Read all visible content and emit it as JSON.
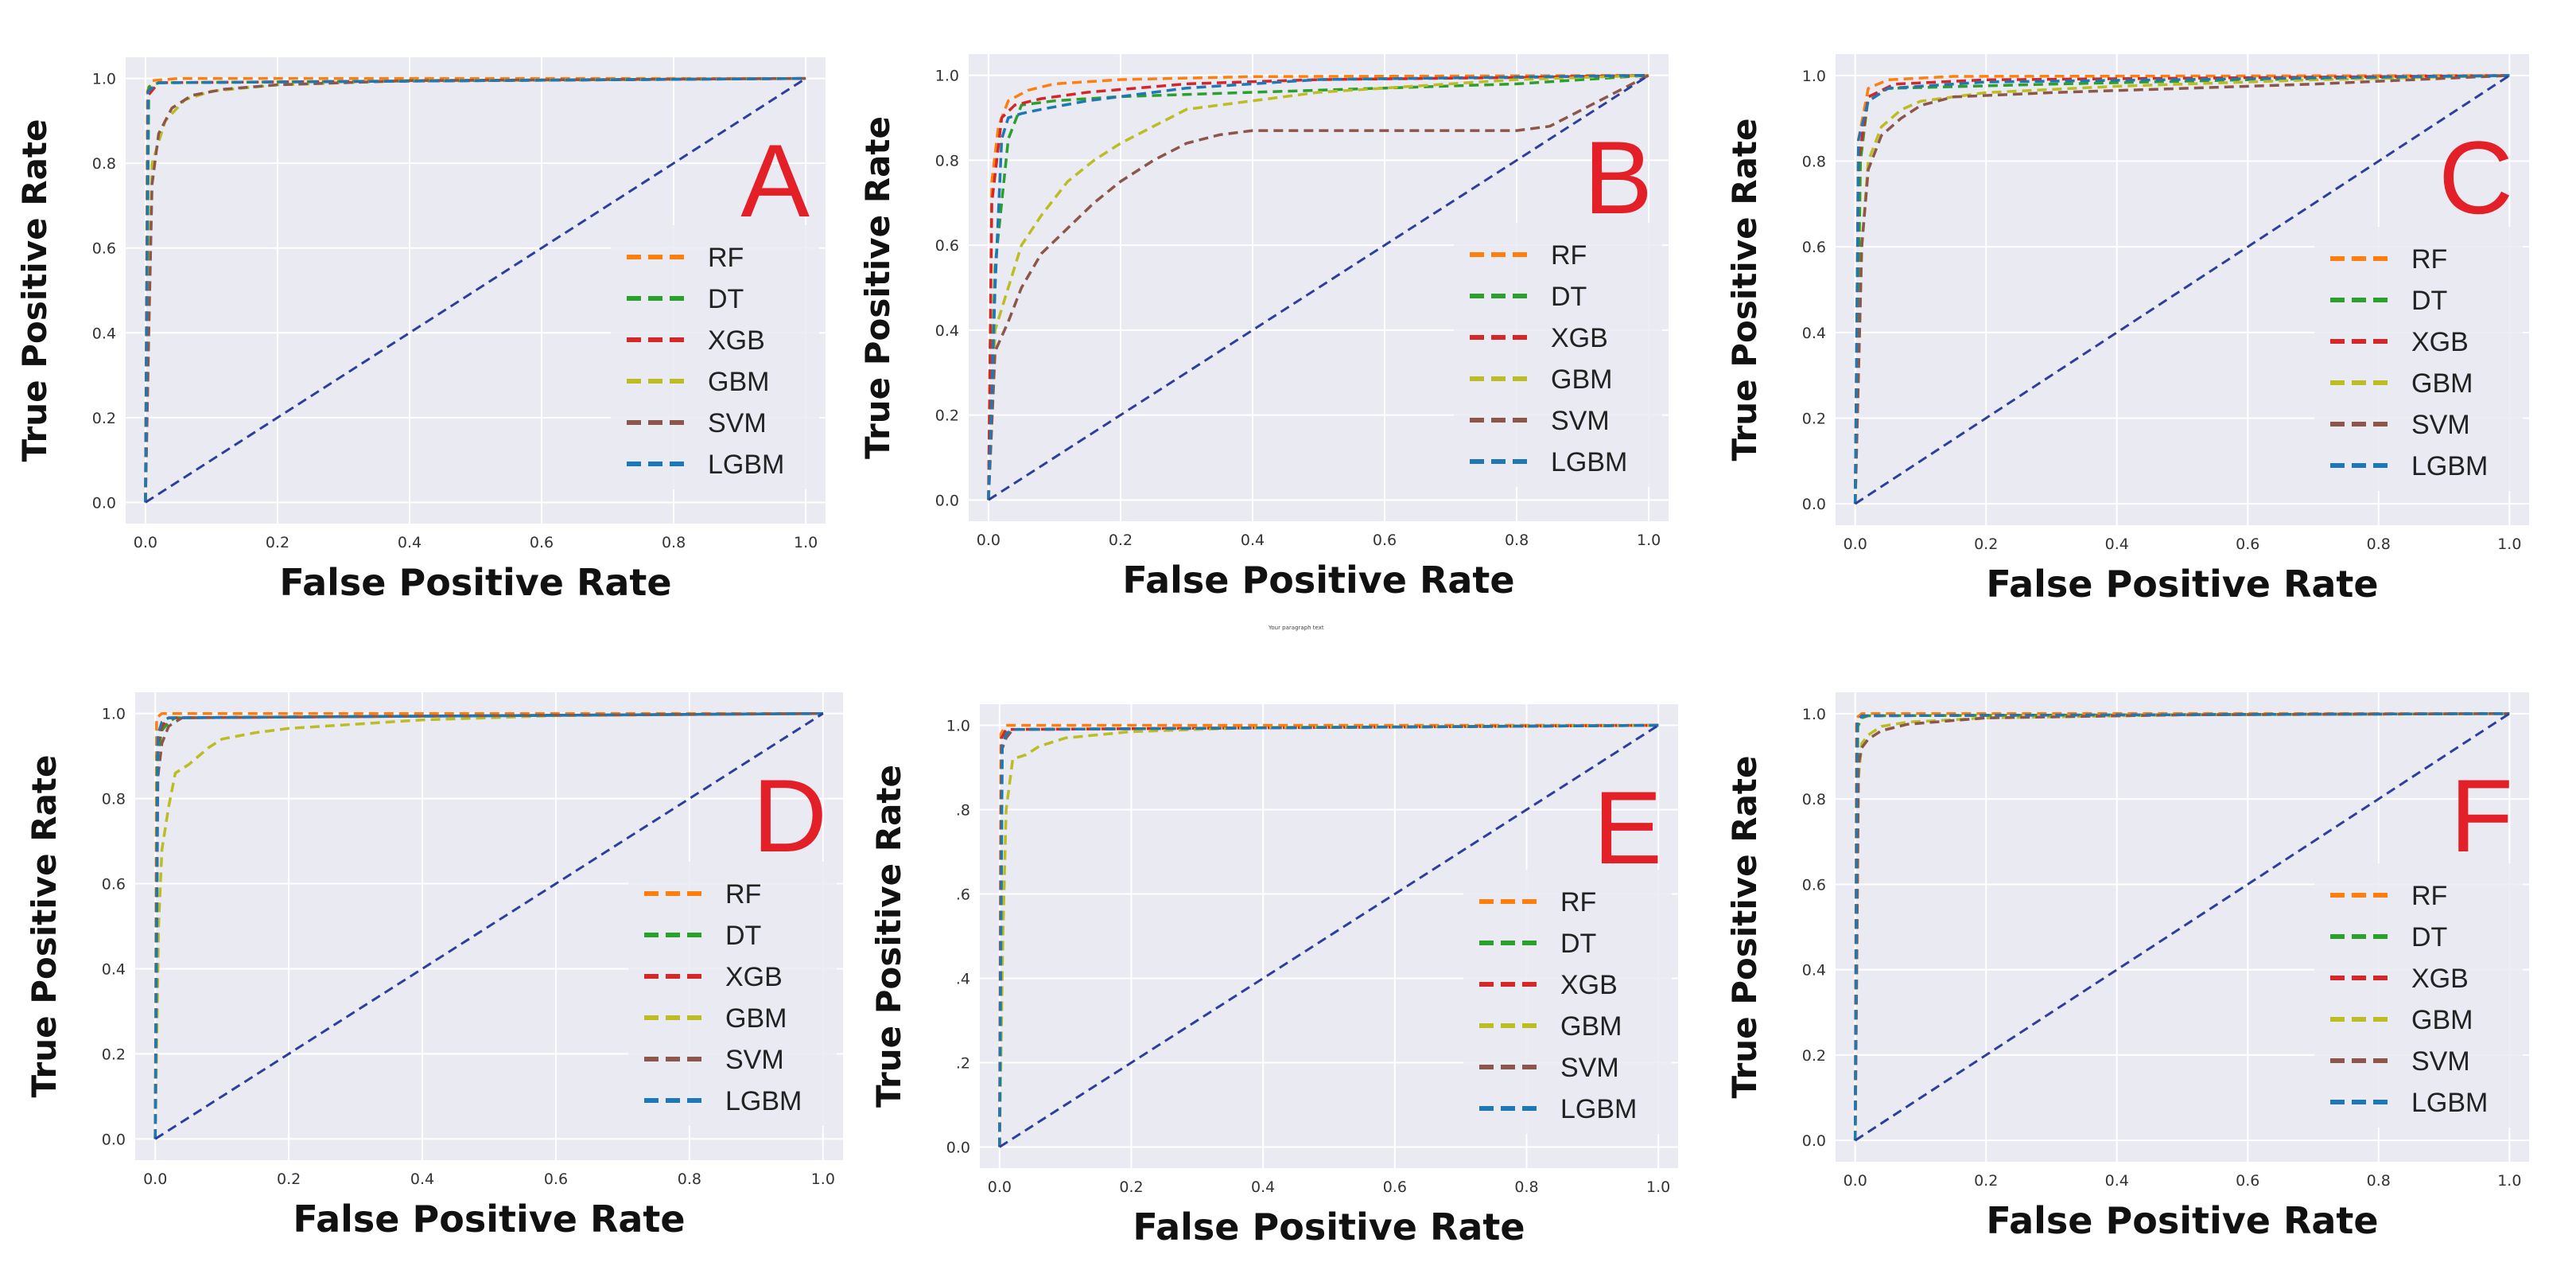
{
  "figure": {
    "footnote": "Your paragraph text"
  },
  "legend_colors": {
    "RF": "#ff7f0e",
    "DT": "#2ca02c",
    "XGB": "#d62728",
    "GBM": "#bcbd22",
    "SVM": "#8c564b",
    "LGBM": "#1f77b4",
    "diagonal": "#2b3f9e",
    "panel_label": "#e32028",
    "plot_background": "#eaeaf2"
  },
  "chart_data": [
    {
      "type": "line",
      "panel_label": "A",
      "xlabel": "False Positive Rate",
      "ylabel": "True Positive Rate",
      "xlim": [
        0,
        1
      ],
      "ylim": [
        0,
        1
      ],
      "xticks": [
        "0.0",
        "0.2",
        "0.4",
        "0.6",
        "0.8",
        "1.0"
      ],
      "yticks": [
        "0.0",
        "0.2",
        "0.4",
        "0.6",
        "0.8",
        "1.0"
      ],
      "grid": true,
      "legend_position": "lower-right",
      "series": [
        {
          "name": "RF",
          "x": [
            0,
            0.003,
            0.01,
            0.05,
            1
          ],
          "y": [
            0,
            0.97,
            0.995,
            1.0,
            1.0
          ]
        },
        {
          "name": "DT",
          "x": [
            0,
            0.005,
            0.02,
            1
          ],
          "y": [
            0,
            0.98,
            0.99,
            1.0
          ]
        },
        {
          "name": "XGB",
          "x": [
            0,
            0.004,
            0.02,
            1
          ],
          "y": [
            0,
            0.96,
            0.99,
            1.0
          ]
        },
        {
          "name": "GBM",
          "x": [
            0,
            0.005,
            0.01,
            0.03,
            0.06,
            0.1,
            0.2,
            0.4,
            1
          ],
          "y": [
            0,
            0.45,
            0.8,
            0.9,
            0.95,
            0.97,
            0.985,
            0.995,
            1.0
          ]
        },
        {
          "name": "SVM",
          "x": [
            0,
            0.005,
            0.01,
            0.02,
            0.04,
            0.07,
            0.12,
            0.2,
            0.4,
            1
          ],
          "y": [
            0,
            0.4,
            0.75,
            0.87,
            0.93,
            0.96,
            0.975,
            0.985,
            0.995,
            1.0
          ]
        },
        {
          "name": "LGBM",
          "x": [
            0,
            0.004,
            0.02,
            1
          ],
          "y": [
            0,
            0.97,
            0.99,
            1.0
          ]
        },
        {
          "name": "",
          "x": [
            0,
            1
          ],
          "y": [
            0,
            1
          ]
        }
      ]
    },
    {
      "type": "line",
      "panel_label": "B",
      "xlabel": "False Positive Rate",
      "ylabel": "True Positive Rate",
      "xlim": [
        0,
        1
      ],
      "ylim": [
        0,
        1
      ],
      "xticks": [
        "0.0",
        "0.2",
        "0.4",
        "0.6",
        "0.8",
        "1.0"
      ],
      "yticks": [
        "0.0",
        "0.2",
        "0.4",
        "0.6",
        "0.8",
        "1.0"
      ],
      "grid": true,
      "legend_position": "lower-right",
      "series": [
        {
          "name": "RF",
          "x": [
            0,
            0.005,
            0.015,
            0.03,
            0.06,
            0.1,
            0.2,
            0.4,
            1
          ],
          "y": [
            0,
            0.75,
            0.88,
            0.94,
            0.965,
            0.98,
            0.99,
            0.997,
            1.0
          ]
        },
        {
          "name": "DT",
          "x": [
            0,
            0.01,
            0.03,
            0.05,
            0.1,
            0.2,
            0.4,
            0.6,
            0.8,
            1
          ],
          "y": [
            0,
            0.55,
            0.85,
            0.93,
            0.94,
            0.95,
            0.96,
            0.97,
            0.98,
            1.0
          ]
        },
        {
          "name": "XGB",
          "x": [
            0,
            0.005,
            0.02,
            0.04,
            0.08,
            0.15,
            0.3,
            0.5,
            0.8,
            1
          ],
          "y": [
            0,
            0.7,
            0.9,
            0.93,
            0.945,
            0.96,
            0.98,
            0.99,
            0.995,
            1.0
          ]
        },
        {
          "name": "GBM",
          "x": [
            0,
            0.01,
            0.03,
            0.05,
            0.08,
            0.12,
            0.16,
            0.2,
            0.25,
            0.3,
            0.4,
            0.5,
            0.6,
            0.8,
            1
          ],
          "y": [
            0,
            0.4,
            0.5,
            0.6,
            0.67,
            0.75,
            0.8,
            0.84,
            0.88,
            0.92,
            0.94,
            0.96,
            0.97,
            0.99,
            1.0
          ]
        },
        {
          "name": "SVM",
          "x": [
            0,
            0.01,
            0.03,
            0.05,
            0.08,
            0.12,
            0.16,
            0.2,
            0.25,
            0.3,
            0.35,
            0.4,
            0.6,
            0.8,
            0.85,
            0.9,
            0.95,
            1
          ],
          "y": [
            0,
            0.35,
            0.42,
            0.5,
            0.58,
            0.64,
            0.7,
            0.75,
            0.8,
            0.84,
            0.86,
            0.87,
            0.87,
            0.87,
            0.88,
            0.92,
            0.96,
            1.0
          ]
        },
        {
          "name": "LGBM",
          "x": [
            0,
            0.01,
            0.02,
            0.03,
            0.05,
            0.08,
            0.15,
            0.3,
            0.5,
            1
          ],
          "y": [
            0,
            0.5,
            0.85,
            0.9,
            0.91,
            0.92,
            0.94,
            0.97,
            0.99,
            1.0
          ]
        },
        {
          "name": "",
          "x": [
            0,
            1
          ],
          "y": [
            0,
            1
          ]
        }
      ]
    },
    {
      "type": "line",
      "panel_label": "C",
      "xlabel": "False Positive Rate",
      "ylabel": "True Positive Rate",
      "xlim": [
        0,
        1
      ],
      "ylim": [
        0,
        1
      ],
      "xticks": [
        "0.0",
        "0.2",
        "0.4",
        "0.6",
        "0.8",
        "1.0"
      ],
      "yticks": [
        "0.0",
        "0.2",
        "0.4",
        "0.6",
        "0.8",
        "1.0"
      ],
      "grid": true,
      "legend_position": "lower-right",
      "series": [
        {
          "name": "RF",
          "x": [
            0,
            0.005,
            0.02,
            0.05,
            0.15,
            1
          ],
          "y": [
            0,
            0.85,
            0.97,
            0.99,
            0.998,
            1.0
          ]
        },
        {
          "name": "DT",
          "x": [
            0,
            0.008,
            0.02,
            0.05,
            0.3,
            0.6,
            1
          ],
          "y": [
            0,
            0.8,
            0.95,
            0.97,
            0.98,
            0.99,
            1.0
          ]
        },
        {
          "name": "XGB",
          "x": [
            0,
            0.005,
            0.02,
            0.06,
            0.2,
            1
          ],
          "y": [
            0,
            0.8,
            0.95,
            0.98,
            0.99,
            1.0
          ]
        },
        {
          "name": "GBM",
          "x": [
            0,
            0.01,
            0.02,
            0.04,
            0.07,
            0.1,
            0.2,
            0.4,
            0.7,
            1
          ],
          "y": [
            0,
            0.6,
            0.8,
            0.88,
            0.92,
            0.94,
            0.96,
            0.975,
            0.99,
            1.0
          ]
        },
        {
          "name": "SVM",
          "x": [
            0,
            0.01,
            0.02,
            0.04,
            0.07,
            0.1,
            0.15,
            0.3,
            0.5,
            0.7,
            1
          ],
          "y": [
            0,
            0.6,
            0.78,
            0.86,
            0.9,
            0.93,
            0.95,
            0.96,
            0.97,
            0.98,
            1.0
          ]
        },
        {
          "name": "LGBM",
          "x": [
            0,
            0.005,
            0.02,
            0.05,
            0.2,
            1
          ],
          "y": [
            0,
            0.85,
            0.94,
            0.97,
            0.985,
            1.0
          ]
        },
        {
          "name": "",
          "x": [
            0,
            1
          ],
          "y": [
            0,
            1
          ]
        }
      ]
    },
    {
      "type": "line",
      "panel_label": "D",
      "xlabel": "False Positive Rate",
      "ylabel": "True Positive Rate",
      "xlim": [
        0,
        1
      ],
      "ylim": [
        0,
        1
      ],
      "xticks": [
        "0.0",
        "0.2",
        "0.4",
        "0.6",
        "0.8",
        "1.0"
      ],
      "yticks": [
        "0.0",
        "0.2",
        "0.4",
        "0.6",
        "0.8",
        "1.0"
      ],
      "grid": true,
      "legend_position": "lower-right",
      "series": [
        {
          "name": "RF",
          "x": [
            0,
            0.002,
            0.01,
            1
          ],
          "y": [
            0,
            0.99,
            1.0,
            1.0
          ]
        },
        {
          "name": "DT",
          "x": [
            0,
            0.003,
            0.01,
            0.02,
            0.03,
            1
          ],
          "y": [
            0,
            0.9,
            0.96,
            0.98,
            0.99,
            1.0
          ]
        },
        {
          "name": "XGB",
          "x": [
            0,
            0.004,
            0.01,
            0.02,
            1
          ],
          "y": [
            0,
            0.93,
            0.97,
            0.99,
            1.0
          ]
        },
        {
          "name": "GBM",
          "x": [
            0,
            0.005,
            0.01,
            0.02,
            0.03,
            0.05,
            0.08,
            0.1,
            0.15,
            0.2,
            0.3,
            0.4,
            0.6,
            1
          ],
          "y": [
            0,
            0.5,
            0.68,
            0.78,
            0.86,
            0.88,
            0.92,
            0.94,
            0.955,
            0.965,
            0.975,
            0.985,
            0.995,
            1.0
          ]
        },
        {
          "name": "SVM",
          "x": [
            0,
            0.004,
            0.01,
            0.02,
            0.04,
            1
          ],
          "y": [
            0,
            0.85,
            0.93,
            0.97,
            0.99,
            1.0
          ]
        },
        {
          "name": "LGBM",
          "x": [
            0,
            0.004,
            0.01,
            0.02,
            1
          ],
          "y": [
            0,
            0.95,
            0.98,
            0.99,
            1.0
          ]
        },
        {
          "name": "",
          "x": [
            0,
            1
          ],
          "y": [
            0,
            1
          ]
        }
      ]
    },
    {
      "type": "line",
      "panel_label": "E",
      "xlabel": "False Positive Rate",
      "ylabel": "True Positive Rate",
      "xlim": [
        0,
        1
      ],
      "ylim": [
        0,
        1
      ],
      "xticks": [
        "0.0",
        "0.2",
        "0.4",
        "0.6",
        "0.8",
        "1.0"
      ],
      "yticks": [
        "0.0",
        ".2",
        ".4",
        ".6",
        ".8",
        "1.0"
      ],
      "grid": true,
      "legend_position": "lower-right",
      "series": [
        {
          "name": "RF",
          "x": [
            0,
            0.002,
            0.01,
            1
          ],
          "y": [
            0,
            0.98,
            1.0,
            1.0
          ]
        },
        {
          "name": "DT",
          "x": [
            0,
            0.004,
            0.01,
            0.02,
            1
          ],
          "y": [
            0,
            0.95,
            0.98,
            0.99,
            1.0
          ]
        },
        {
          "name": "XGB",
          "x": [
            0,
            0.003,
            0.01,
            1
          ],
          "y": [
            0,
            0.97,
            0.99,
            1.0
          ]
        },
        {
          "name": "GBM",
          "x": [
            0,
            0.005,
            0.01,
            0.02,
            0.04,
            0.06,
            0.1,
            0.2,
            0.4,
            1
          ],
          "y": [
            0,
            0.5,
            0.8,
            0.92,
            0.93,
            0.95,
            0.97,
            0.985,
            0.995,
            1.0
          ]
        },
        {
          "name": "SVM",
          "x": [
            0,
            0.003,
            0.01,
            0.02,
            1
          ],
          "y": [
            0,
            0.94,
            0.97,
            0.99,
            1.0
          ]
        },
        {
          "name": "LGBM",
          "x": [
            0,
            0.004,
            0.01,
            0.02,
            1
          ],
          "y": [
            0,
            0.95,
            0.98,
            0.99,
            1.0
          ]
        },
        {
          "name": "",
          "x": [
            0,
            1
          ],
          "y": [
            0,
            1
          ]
        }
      ]
    },
    {
      "type": "line",
      "panel_label": "F",
      "xlabel": "False Positive Rate",
      "ylabel": "True Positive Rate",
      "xlim": [
        0,
        1
      ],
      "ylim": [
        0,
        1
      ],
      "xticks": [
        "0.0",
        "0.2",
        "0.4",
        "0.6",
        "0.8",
        "1.0"
      ],
      "yticks": [
        "0.0",
        "0.2",
        "0.4",
        "0.6",
        "0.8",
        "1.0"
      ],
      "grid": true,
      "legend_position": "lower-right",
      "series": [
        {
          "name": "RF",
          "x": [
            0,
            0.002,
            0.01,
            1
          ],
          "y": [
            0,
            0.99,
            1.0,
            1.0
          ]
        },
        {
          "name": "DT",
          "x": [
            0,
            0.004,
            0.01,
            0.02,
            1
          ],
          "y": [
            0,
            0.97,
            0.99,
            0.995,
            1.0
          ]
        },
        {
          "name": "XGB",
          "x": [
            0,
            0.003,
            0.01,
            1
          ],
          "y": [
            0,
            0.98,
            0.995,
            1.0
          ]
        },
        {
          "name": "GBM",
          "x": [
            0,
            0.005,
            0.01,
            0.02,
            0.04,
            0.08,
            0.2,
            0.5,
            1
          ],
          "y": [
            0,
            0.85,
            0.93,
            0.95,
            0.97,
            0.98,
            0.99,
            0.997,
            1.0
          ]
        },
        {
          "name": "SVM",
          "x": [
            0,
            0.005,
            0.01,
            0.02,
            0.04,
            0.08,
            0.2,
            0.5,
            1
          ],
          "y": [
            0,
            0.88,
            0.92,
            0.94,
            0.96,
            0.975,
            0.99,
            0.997,
            1.0
          ]
        },
        {
          "name": "LGBM",
          "x": [
            0,
            0.003,
            0.01,
            1
          ],
          "y": [
            0,
            0.98,
            0.995,
            1.0
          ]
        },
        {
          "name": "",
          "x": [
            0,
            1
          ],
          "y": [
            0,
            1
          ]
        }
      ]
    }
  ]
}
